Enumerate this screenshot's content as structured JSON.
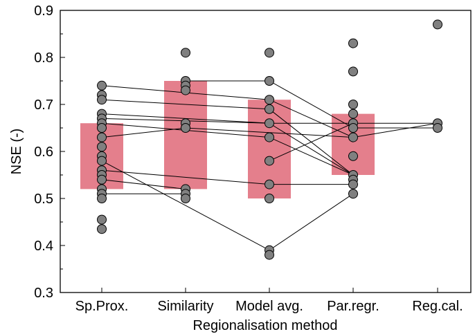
{
  "chart_data": {
    "type": "scatter",
    "xlabel": "Regionalisation method",
    "ylabel": "NSE (-)",
    "ylim": [
      0.3,
      0.9
    ],
    "y_ticks": [
      "0.3",
      "0.4",
      "0.5",
      "0.6",
      "0.7",
      "0.8",
      "0.9"
    ],
    "categories": [
      "Sp.Prox.",
      "Similarity",
      "Model avg.",
      "Par.regr.",
      "Reg.cal."
    ],
    "grid": false,
    "bar_color": "#e47f8c",
    "point_color": "#808080",
    "bars": [
      {
        "category": "Sp.Prox.",
        "low": 0.52,
        "high": 0.66
      },
      {
        "category": "Similarity",
        "low": 0.52,
        "high": 0.75
      },
      {
        "category": "Model avg.",
        "low": 0.5,
        "high": 0.71
      },
      {
        "category": "Par.regr.",
        "low": 0.55,
        "high": 0.68
      }
    ],
    "points": [
      [
        0.74,
        0.72,
        0.71,
        0.68,
        0.67,
        0.66,
        0.65,
        0.63,
        0.61,
        0.59,
        0.58,
        0.56,
        0.55,
        0.54,
        0.52,
        0.51,
        0.5,
        0.455,
        0.435
      ],
      [
        0.81,
        0.75,
        0.74,
        0.73,
        0.66,
        0.65,
        0.52,
        0.51,
        0.5
      ],
      [
        0.81,
        0.75,
        0.71,
        0.69,
        0.66,
        0.63,
        0.58,
        0.53,
        0.5,
        0.39,
        0.38
      ],
      [
        0.83,
        0.77,
        0.7,
        0.68,
        0.66,
        0.65,
        0.63,
        0.59,
        0.55,
        0.54,
        0.53,
        0.51
      ],
      [
        0.87,
        0.66,
        0.65
      ]
    ],
    "links": [
      [
        [
          0,
          0.74
        ],
        [
          2,
          0.71
        ],
        [
          3,
          0.63
        ]
      ],
      [
        [
          0,
          0.71
        ],
        [
          2,
          0.69
        ],
        [
          3,
          0.55
        ]
      ],
      [
        [
          0,
          0.68
        ],
        [
          2,
          0.66
        ],
        [
          3,
          0.55
        ]
      ],
      [
        [
          0,
          0.67
        ],
        [
          2,
          0.66
        ],
        [
          3,
          0.66
        ]
      ],
      [
        [
          0,
          0.66
        ],
        [
          2,
          0.63
        ],
        [
          3,
          0.55
        ]
      ],
      [
        [
          0,
          0.63
        ],
        [
          1,
          0.65
        ],
        [
          2,
          0.64
        ],
        [
          3,
          0.63
        ],
        [
          4,
          0.66
        ]
      ],
      [
        [
          0,
          0.56
        ],
        [
          2,
          0.53
        ],
        [
          3,
          0.53
        ]
      ],
      [
        [
          0,
          0.54
        ],
        [
          1,
          0.52
        ]
      ],
      [
        [
          0,
          0.51
        ],
        [
          1,
          0.51
        ]
      ],
      [
        [
          0,
          0.58
        ],
        [
          2,
          0.39
        ],
        [
          3,
          0.51
        ]
      ],
      [
        [
          1,
          0.75
        ],
        [
          2,
          0.75
        ],
        [
          3,
          0.65
        ],
        [
          4,
          0.65
        ]
      ],
      [
        [
          2,
          0.58
        ],
        [
          3,
          0.66
        ],
        [
          4,
          0.66
        ]
      ]
    ]
  }
}
